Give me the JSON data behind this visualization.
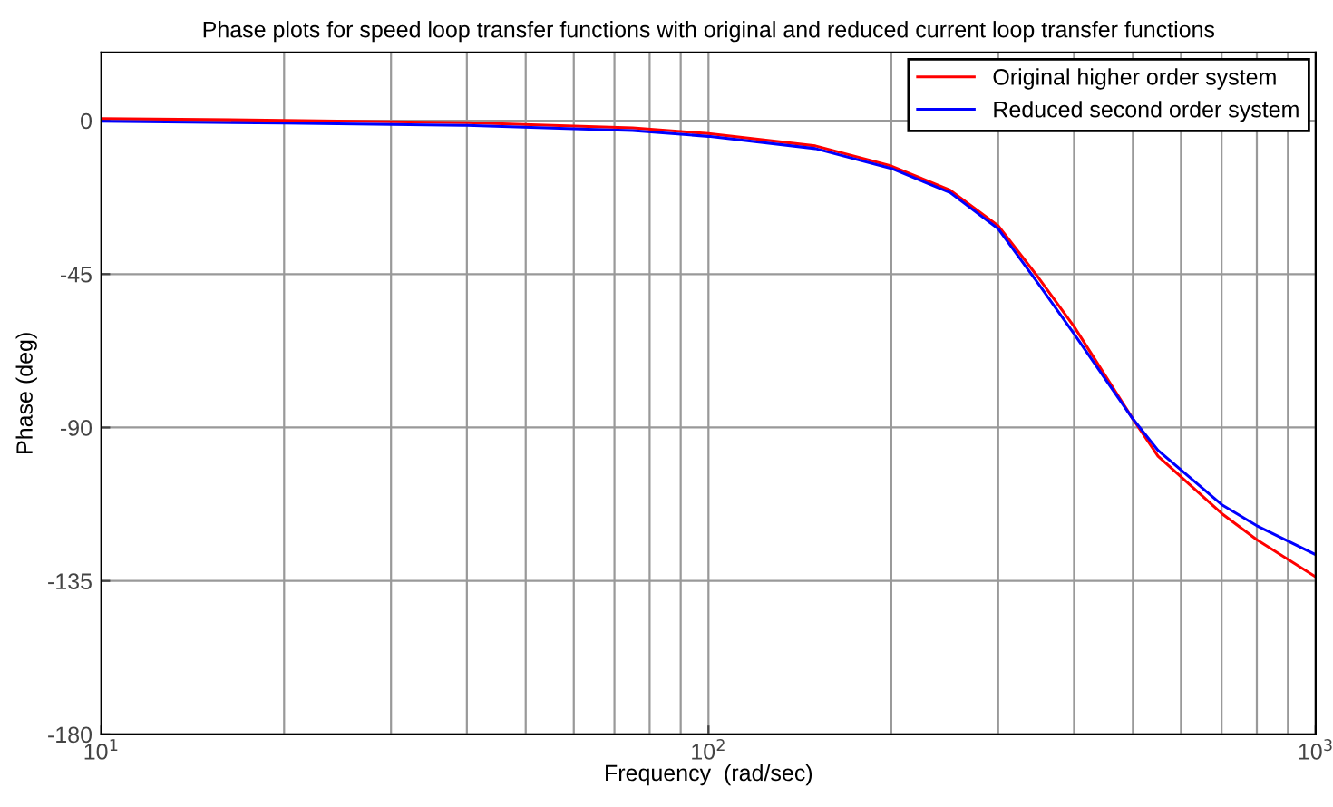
{
  "chart_data": {
    "type": "line",
    "title": "Phase plots for speed loop transfer functions with original and reduced current loop transfer functions",
    "xlabel": "Frequency  (rad/sec)",
    "ylabel": "Phase (deg)",
    "log": "x",
    "xlim": [
      10,
      1000
    ],
    "xticks": [
      {
        "value": 10,
        "label": "10$^{1}$"
      },
      {
        "value": 100,
        "label": "10$^{2}$"
      },
      {
        "value": 1000,
        "label": "10$^{3}$"
      }
    ],
    "ylim": [
      -180,
      20
    ],
    "yticks": [
      {
        "value": -180,
        "label": "-180"
      },
      {
        "value": -135,
        "label": "-135"
      },
      {
        "value": -90,
        "label": "-90"
      },
      {
        "value": -45,
        "label": "-45"
      },
      {
        "value": 0,
        "label": "0"
      }
    ],
    "grid": true,
    "legend": "top right",
    "series": [
      {
        "name": "Original higher order system",
        "color": "#ff0000",
        "x": [
          10,
          20,
          40,
          60,
          75,
          100,
          150,
          200,
          250,
          300,
          350,
          400,
          500,
          550,
          700,
          800,
          1000
        ],
        "values": [
          0.6,
          0.1,
          -0.6,
          -1.6,
          -2.1,
          -3.8,
          -7.4,
          -13.3,
          -20.4,
          -30.8,
          -46.2,
          -60.4,
          -87.5,
          -98.4,
          -115.2,
          -122.9,
          -133.8
        ]
      },
      {
        "name": "Reduced second order system",
        "color": "#0000ff",
        "x": [
          10,
          20,
          40,
          60,
          75,
          100,
          150,
          200,
          250,
          300,
          350,
          400,
          500,
          550,
          700,
          800,
          1000
        ],
        "values": [
          -0.2,
          -0.7,
          -1.4,
          -2.4,
          -2.9,
          -4.6,
          -8.2,
          -14.0,
          -21.1,
          -31.7,
          -48.0,
          -62.5,
          -87.5,
          -96.7,
          -112.6,
          -118.8,
          -127.3
        ]
      }
    ]
  }
}
